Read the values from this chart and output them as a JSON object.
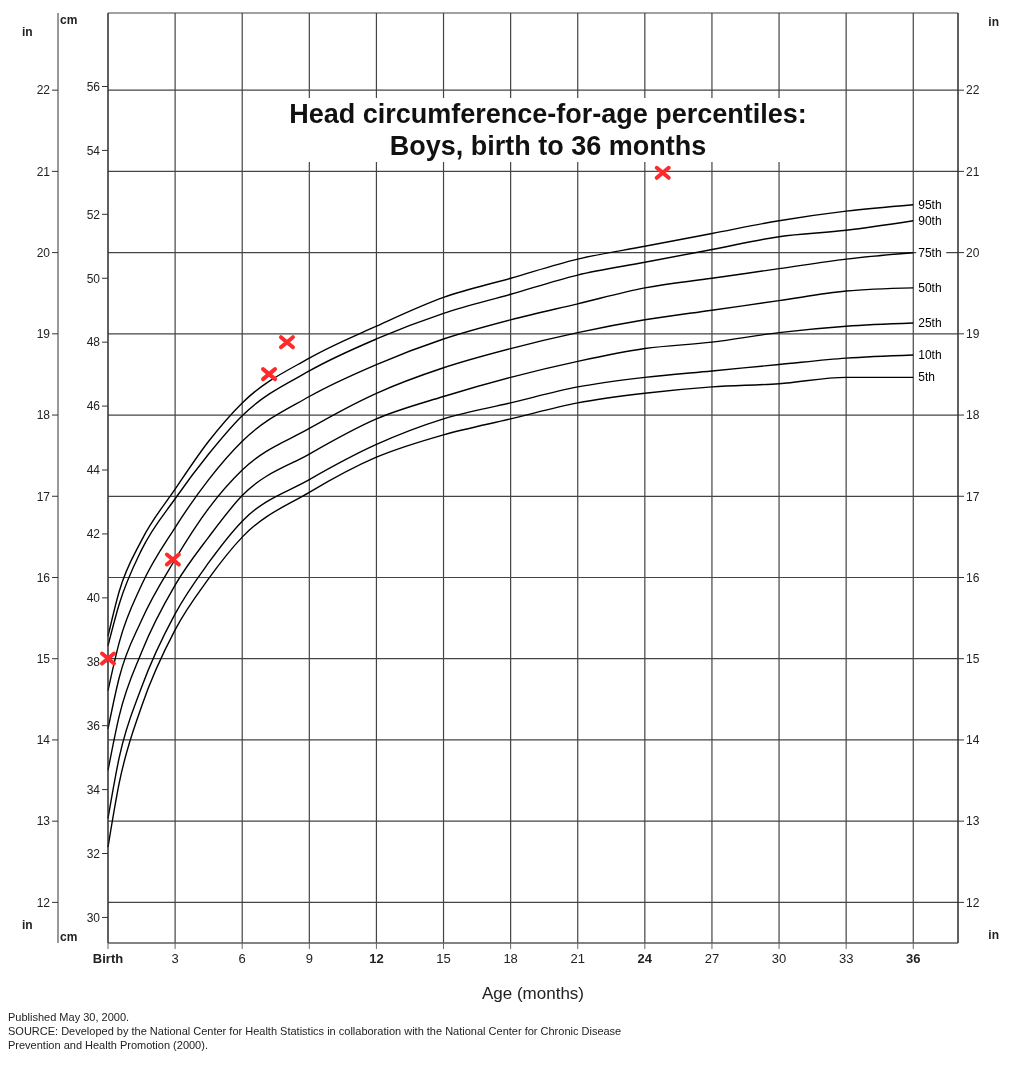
{
  "chart_data": {
    "type": "line",
    "title": "Head circumference-for-age percentiles: Boys, birth to 36 months",
    "xlabel": "Age (months)",
    "ylabel": "cm",
    "y2label": "in",
    "x": [
      0,
      0.5,
      1.5,
      3,
      4.5,
      6,
      9,
      12,
      15,
      18,
      21,
      24,
      27,
      30,
      33,
      36
    ],
    "series": [
      {
        "name": "95th",
        "color": "#000000",
        "values": [
          38.8,
          40.2,
          41.8,
          43.4,
          44.9,
          46.1,
          47.5,
          48.5,
          49.4,
          50.0,
          50.6,
          51.0,
          51.4,
          51.8,
          52.1,
          52.3
        ]
      },
      {
        "name": "90th",
        "color": "#000000",
        "values": [
          38.5,
          39.8,
          41.5,
          43.1,
          44.5,
          45.7,
          47.1,
          48.1,
          48.9,
          49.5,
          50.1,
          50.5,
          50.9,
          51.3,
          51.5,
          51.8
        ]
      },
      {
        "name": "75th",
        "color": "#000000",
        "values": [
          37.1,
          38.6,
          40.4,
          42.2,
          43.7,
          44.9,
          46.3,
          47.3,
          48.1,
          48.7,
          49.2,
          49.7,
          50.0,
          50.3,
          50.6,
          50.8
        ]
      },
      {
        "name": "50th",
        "color": "#000000",
        "values": [
          35.9,
          37.5,
          39.3,
          41.2,
          42.8,
          44.0,
          45.3,
          46.4,
          47.2,
          47.8,
          48.3,
          48.7,
          49.0,
          49.3,
          49.6,
          49.7
        ]
      },
      {
        "name": "25th",
        "color": "#000000",
        "values": [
          34.6,
          36.3,
          38.3,
          40.4,
          41.9,
          43.2,
          44.5,
          45.6,
          46.3,
          46.9,
          47.4,
          47.8,
          48.0,
          48.3,
          48.5,
          48.6
        ]
      },
      {
        "name": "10th",
        "color": "#000000",
        "values": [
          33.1,
          35.0,
          37.2,
          39.5,
          41.1,
          42.4,
          43.7,
          44.8,
          45.6,
          46.1,
          46.6,
          46.9,
          47.1,
          47.3,
          47.5,
          47.6
        ]
      },
      {
        "name": "5th",
        "color": "#000000",
        "values": [
          32.2,
          34.2,
          36.6,
          39.0,
          40.6,
          41.9,
          43.3,
          44.4,
          45.1,
          45.6,
          46.1,
          46.4,
          46.6,
          46.7,
          46.9,
          46.9
        ]
      },
      {
        "type": "scatter",
        "color": "#ff2a2a",
        "marker": "cross",
        "x": [
          0,
          2.9,
          7.2,
          8.0,
          24.8
        ],
        "values": [
          38.1,
          41.2,
          47.0,
          48.0,
          53.3
        ]
      }
    ],
    "xlim": [
      0,
      38
    ],
    "xticks": [
      {
        "value": 0,
        "label": "Birth"
      },
      3,
      6,
      9,
      12,
      15,
      18,
      21,
      24,
      27,
      30,
      33,
      36
    ],
    "ylim": [
      29.2,
      58.3
    ],
    "yticks": [
      30,
      32,
      34,
      36,
      38,
      40,
      42,
      44,
      46,
      48,
      50,
      52,
      54,
      56
    ],
    "y2lim": [
      11.5,
      22.95
    ],
    "y2ticks": [
      12,
      13,
      14,
      15,
      16,
      17,
      18,
      19,
      20,
      21,
      22
    ],
    "y3lim": [
      11.5,
      22.95
    ],
    "y3ticks": [
      12,
      13,
      14,
      15,
      16,
      17,
      18,
      19,
      20,
      21,
      22
    ],
    "grid": true,
    "legend": false,
    "marker": "none",
    "line_style": "solid",
    "annotations": [
      "Published May 30, 2000.",
      "SOURCE: Developed by the National Center for Health Statistics in collaboration with the National Center for Chronic Disease Prevention and Health Promotion (2000)."
    ]
  }
}
